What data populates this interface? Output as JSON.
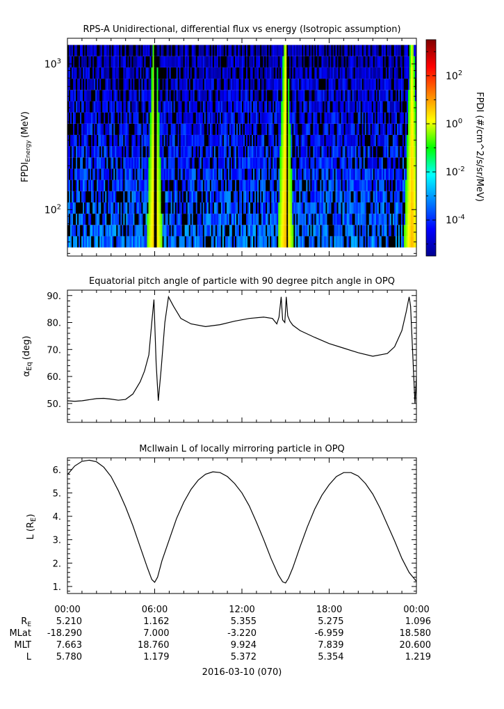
{
  "figure": {
    "xticks": [
      "00:00",
      "06:00",
      "12:00",
      "18:00",
      "00:00"
    ],
    "date_label": "2016-03-10 (070)"
  },
  "chart_data": [
    {
      "type": "heatmap",
      "title": "RPS-A Unidirectional, differential flux vs energy (Isotropic assumption)",
      "ylabel_main": "FPDI",
      "ylabel_sub": "Energy",
      "ylabel_unit": "(MeV)",
      "y_scale": "log",
      "ylim": [
        48,
        1500
      ],
      "yticks": [
        {
          "value": 100,
          "base": "10",
          "exp": "2"
        },
        {
          "value": 1000,
          "base": "10",
          "exp": "3"
        }
      ],
      "xlim_hours": [
        0,
        24
      ],
      "energy_bins": 18,
      "energy_range": [
        55,
        1350
      ],
      "peaks_hours": [
        6.0,
        15.0,
        23.7
      ],
      "colorbar": {
        "label": "FPDI (#/cm^2/s/sr/MeV)",
        "scale": "log",
        "range_log10": [
          -5.5,
          3.5
        ],
        "ticks": [
          {
            "value_log10": 2,
            "base": "10",
            "exp": "2"
          },
          {
            "value_log10": 0,
            "base": "10",
            "exp": "0"
          },
          {
            "value_log10": -2,
            "base": "10",
            "exp": "-2"
          },
          {
            "value_log10": -4,
            "base": "10",
            "exp": "-4"
          }
        ]
      }
    },
    {
      "type": "line",
      "title": "Equatorial pitch angle of particle with 90 degree pitch angle in OPQ",
      "ylabel": "α",
      "ylabel_sub": "Eq",
      "ylabel_unit": "(deg)",
      "ylim": [
        43,
        92
      ],
      "yticks": [
        "50.",
        "60.",
        "70.",
        "80.",
        "90."
      ],
      "ytick_values": [
        50,
        60,
        70,
        80,
        90
      ],
      "x_hours": [
        0,
        0.5,
        1,
        1.5,
        2,
        2.5,
        3,
        3.5,
        4,
        4.5,
        5,
        5.3,
        5.6,
        5.8,
        5.95,
        6.1,
        6.25,
        6.45,
        6.7,
        6.95,
        7.3,
        7.8,
        8.5,
        9.5,
        10.5,
        11.5,
        12.5,
        13.5,
        14.1,
        14.4,
        14.55,
        14.7,
        14.8,
        14.95,
        15.05,
        15.15,
        15.3,
        15.5,
        16,
        17,
        18,
        19,
        20,
        21,
        22,
        22.5,
        23,
        23.3,
        23.5,
        23.6,
        23.75,
        23.9,
        24
      ],
      "values": [
        51,
        50.8,
        51,
        51.4,
        51.8,
        51.9,
        51.6,
        51.2,
        51.5,
        53.5,
        58,
        62,
        68,
        80,
        88.5,
        65,
        51,
        63,
        80,
        89.5,
        86,
        81.5,
        79.5,
        78.5,
        79.2,
        80.5,
        81.5,
        82,
        81.5,
        79.5,
        82,
        89.5,
        81,
        80,
        89.5,
        82.5,
        80.5,
        79,
        77,
        74.5,
        72.2,
        70.5,
        68.8,
        67.5,
        68.5,
        71,
        77,
        84,
        89.5,
        86,
        68,
        50,
        60
      ],
      "line_color": "#000000"
    },
    {
      "type": "line",
      "title": "McIlwain L of locally mirroring particle in OPQ",
      "ylabel": "L (R",
      "ylabel_sub": "E",
      "ylabel_unit": ")",
      "ylim": [
        0.7,
        6.5
      ],
      "yticks": [
        "1.",
        "2.",
        "3.",
        "4.",
        "5.",
        "6."
      ],
      "ytick_values": [
        1,
        2,
        3,
        4,
        5,
        6
      ],
      "x_hours": [
        0,
        0.5,
        1,
        1.5,
        2,
        2.5,
        3,
        3.5,
        4,
        4.5,
        5,
        5.5,
        5.8,
        6.0,
        6.2,
        6.5,
        7,
        7.5,
        8,
        8.5,
        9,
        9.5,
        10,
        10.5,
        11,
        11.5,
        12,
        12.5,
        13,
        13.5,
        14,
        14.5,
        14.8,
        15.0,
        15.2,
        15.5,
        16,
        16.5,
        17,
        17.5,
        18,
        18.5,
        19,
        19.5,
        20,
        20.5,
        21,
        21.5,
        22,
        22.5,
        23,
        23.5,
        24
      ],
      "values": [
        5.78,
        6.15,
        6.35,
        6.4,
        6.33,
        6.1,
        5.7,
        5.1,
        4.4,
        3.6,
        2.7,
        1.8,
        1.3,
        1.18,
        1.4,
        2.1,
        3.0,
        3.9,
        4.6,
        5.15,
        5.55,
        5.8,
        5.9,
        5.87,
        5.7,
        5.4,
        5.0,
        4.45,
        3.75,
        3.0,
        2.2,
        1.5,
        1.2,
        1.15,
        1.35,
        1.8,
        2.7,
        3.55,
        4.3,
        4.9,
        5.35,
        5.7,
        5.87,
        5.87,
        5.72,
        5.4,
        4.95,
        4.35,
        3.65,
        2.95,
        2.2,
        1.6,
        1.22
      ],
      "line_color": "#000000"
    }
  ],
  "ephemeris": {
    "rows": [
      {
        "label": "R",
        "label_sub": "E",
        "values": [
          "5.210",
          "1.162",
          "5.355",
          "5.275",
          "1.096"
        ]
      },
      {
        "label": "MLat",
        "label_sub": "",
        "values": [
          "-18.290",
          "7.000",
          "-3.220",
          "-6.959",
          "18.580"
        ]
      },
      {
        "label": "MLT",
        "label_sub": "",
        "values": [
          "7.663",
          "18.760",
          "9.924",
          "7.839",
          "20.600"
        ]
      },
      {
        "label": "L",
        "label_sub": "",
        "values": [
          "5.780",
          "1.179",
          "5.372",
          "5.354",
          "1.219"
        ]
      }
    ]
  }
}
